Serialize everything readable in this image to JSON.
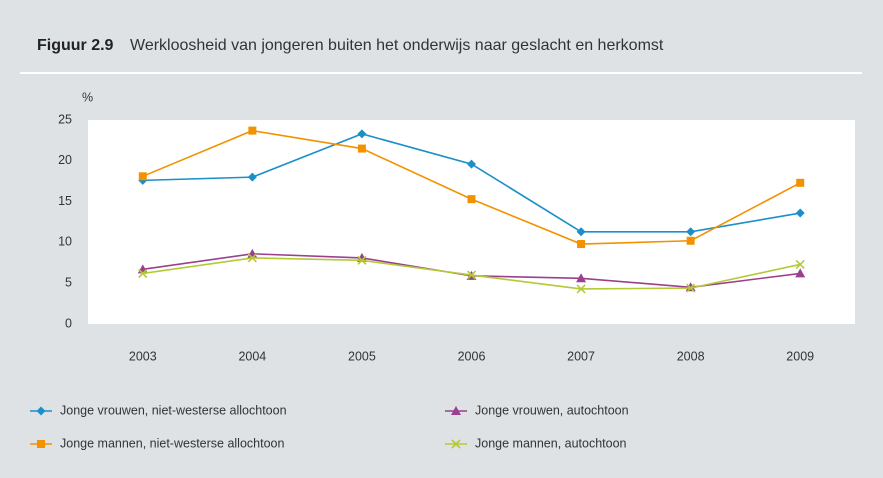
{
  "chart_data": {
    "type": "line",
    "figure_label": "Figuur 2.9",
    "title": "Werkloosheid van jongeren buiten het onderwijs naar geslacht en herkomst",
    "y_label": "%",
    "categories": [
      "2003",
      "2004",
      "2005",
      "2006",
      "2007",
      "2008",
      "2009"
    ],
    "series": [
      {
        "name": "Jonge vrouwen, niet-westerse allochtoon",
        "color": "#1a8fc9",
        "marker": "diamond",
        "values": [
          17.6,
          18.0,
          23.3,
          19.6,
          11.3,
          11.3,
          13.6
        ]
      },
      {
        "name": "Jonge mannen, niet-westerse allochtoon",
        "color": "#f39200",
        "marker": "square",
        "values": [
          18.1,
          23.7,
          21.5,
          15.3,
          9.8,
          10.2,
          17.3
        ]
      },
      {
        "name": "Jonge vrouwen, autochtoon",
        "color": "#9b3f8f",
        "marker": "triangle",
        "values": [
          6.7,
          8.6,
          8.1,
          5.9,
          5.6,
          4.5,
          6.2
        ]
      },
      {
        "name": "Jonge mannen, autochtoon",
        "color": "#b5c934",
        "marker": "x",
        "values": [
          6.2,
          8.1,
          7.8,
          6.0,
          4.3,
          4.4,
          7.3
        ]
      }
    ],
    "ylim": [
      0,
      25
    ],
    "yticks": [
      0,
      5,
      10,
      15,
      20,
      25
    ],
    "grid": false
  }
}
